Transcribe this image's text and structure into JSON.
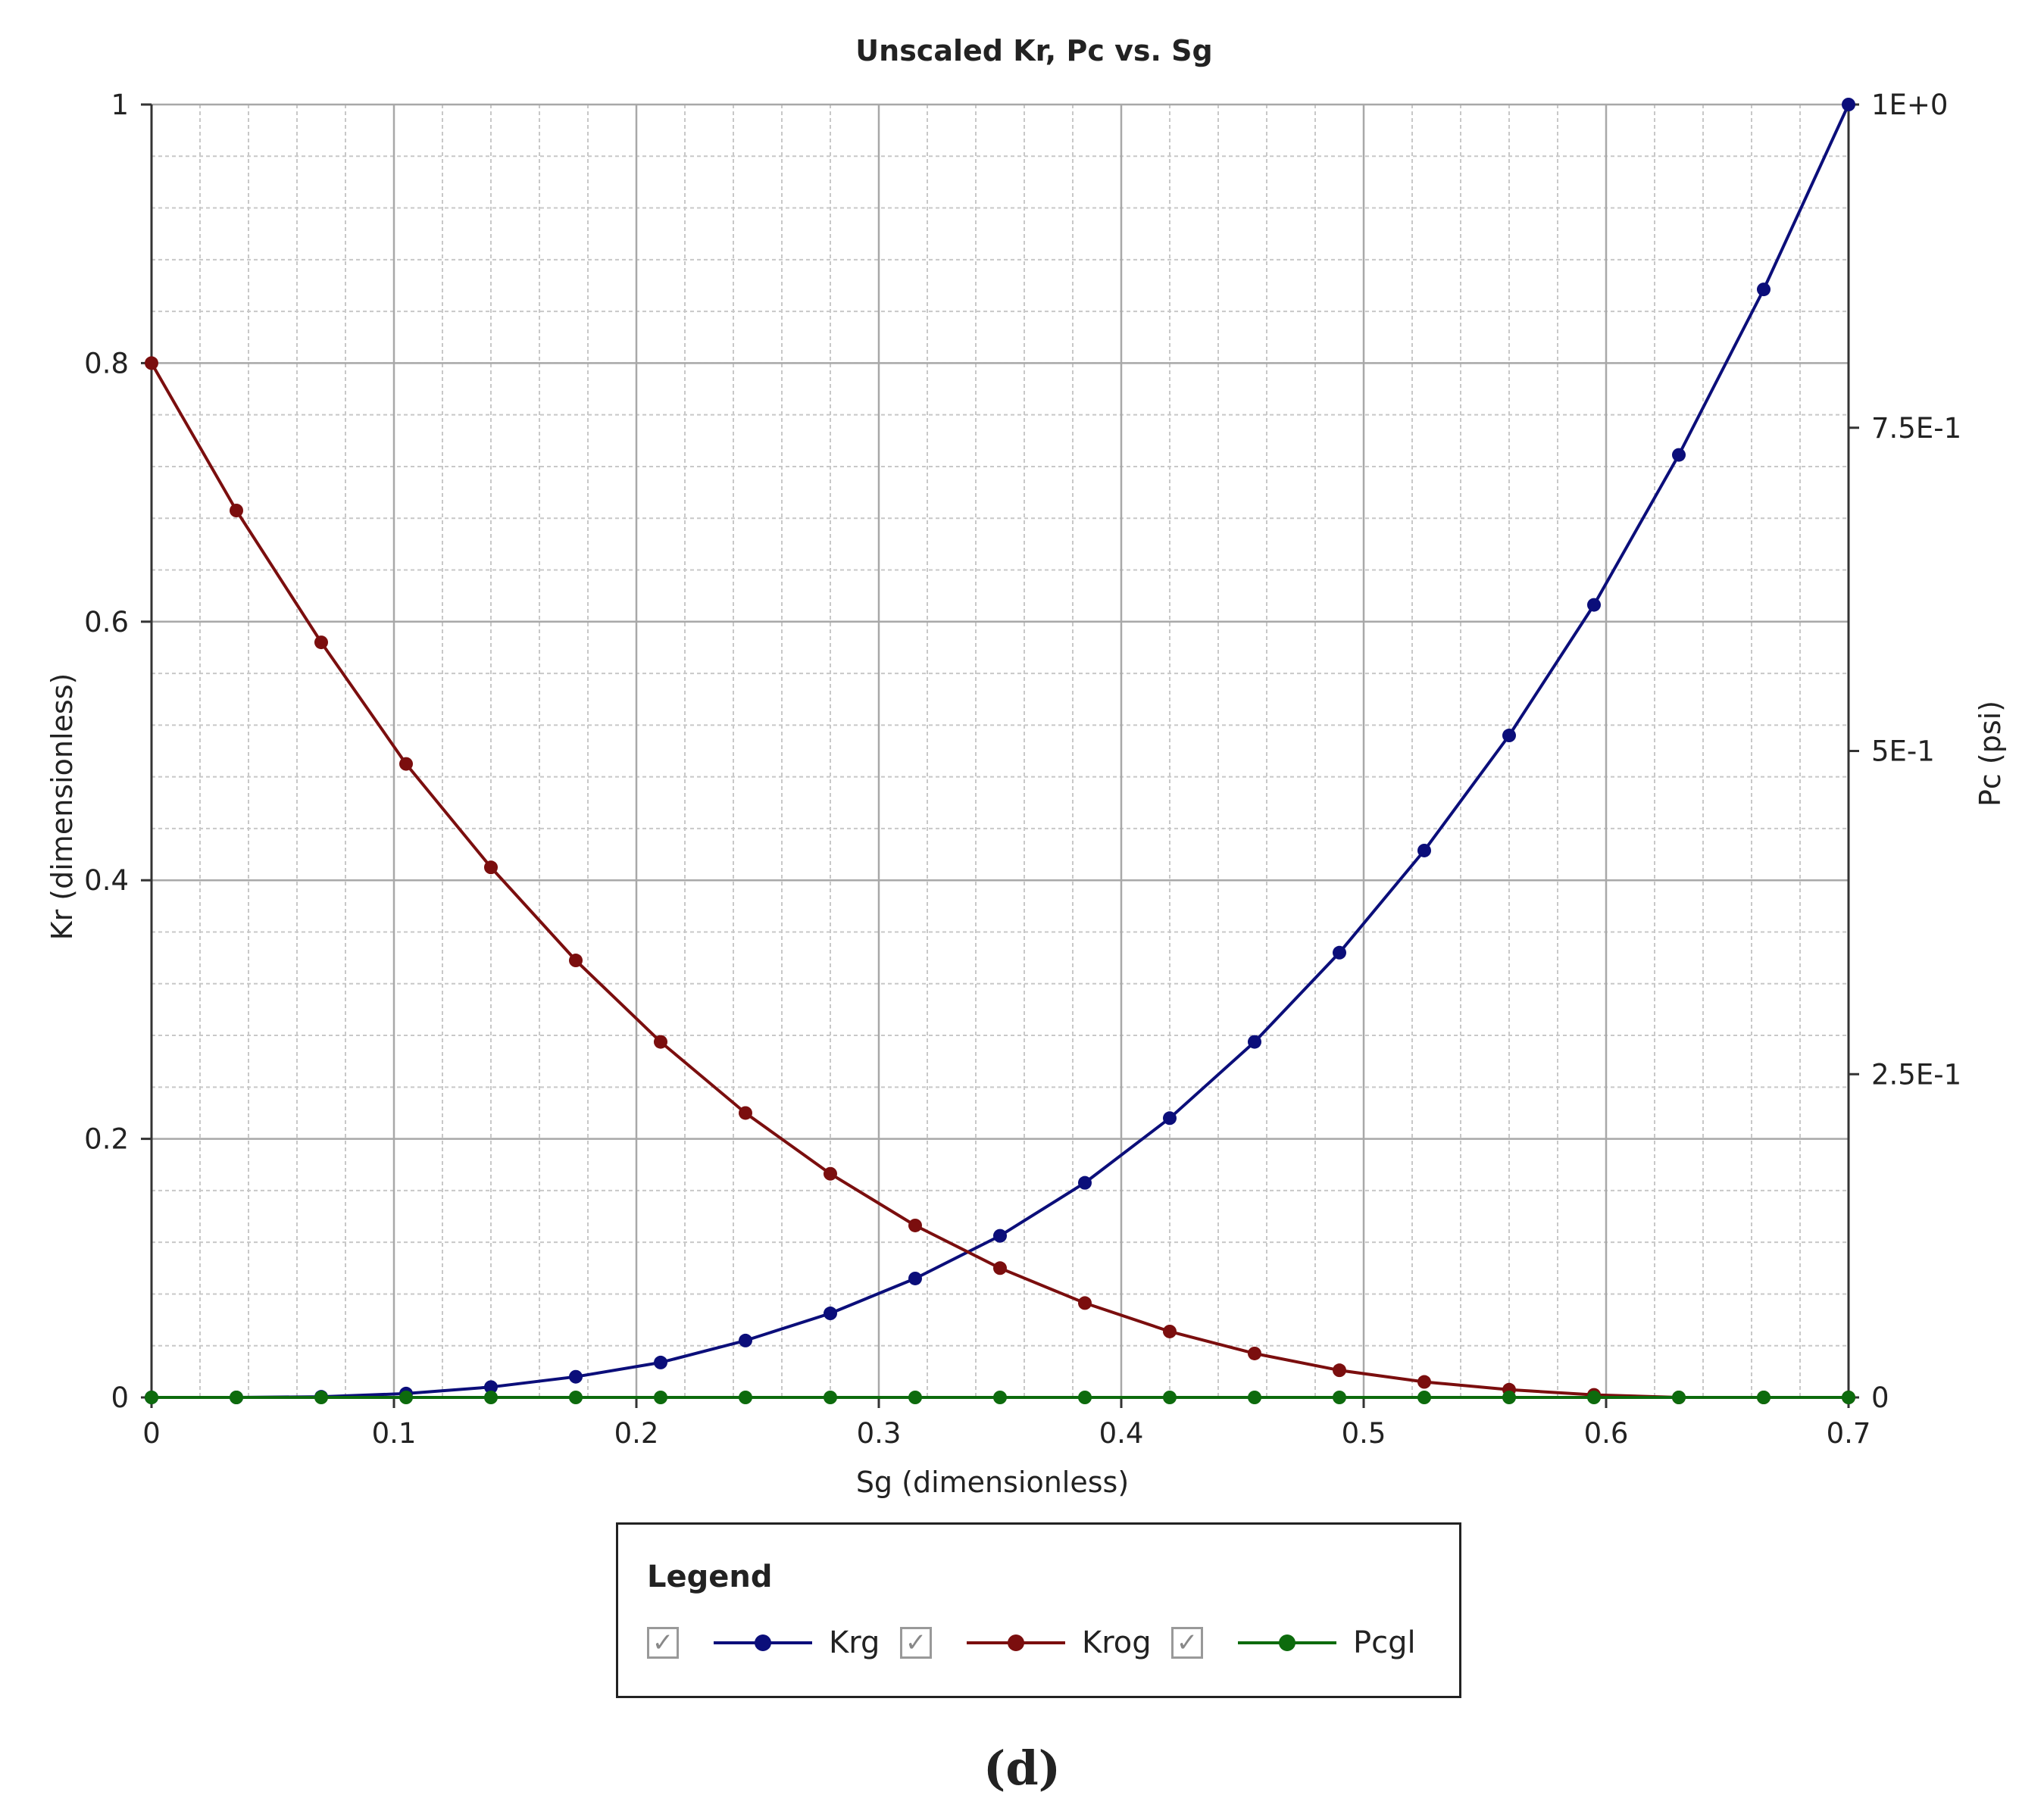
{
  "chart_data": {
    "type": "line",
    "title": "Unscaled Kr, Pc vs. Sg",
    "xlabel": "Sg (dimensionless)",
    "ylabel": "Kr (dimensionless)",
    "y2label": "Pc (psi)",
    "xlim": [
      0,
      0.7
    ],
    "ylim": [
      0,
      1
    ],
    "y2lim": [
      0,
      1
    ],
    "x_ticks": [
      "0",
      "0.1",
      "0.2",
      "0.3",
      "0.4",
      "0.5",
      "0.6",
      "0.7"
    ],
    "y_ticks": [
      "0",
      "0.2",
      "0.4",
      "0.6",
      "0.8",
      "1"
    ],
    "y2_ticks": [
      "0",
      "2.5E-1",
      "5E-1",
      "7.5E-1",
      "1E+0"
    ],
    "grid": true,
    "legend_position": "bottom",
    "x": [
      0,
      0.035,
      0.07,
      0.105,
      0.14,
      0.175,
      0.21,
      0.245,
      0.28,
      0.315,
      0.35,
      0.385,
      0.42,
      0.455,
      0.49,
      0.525,
      0.56,
      0.595,
      0.63,
      0.665,
      0.7
    ],
    "series": [
      {
        "name": "Krg",
        "color": "#0b0e7a",
        "axis": "left",
        "values": [
          0,
          0,
          0.0005,
          0.003,
          0.008,
          0.016,
          0.027,
          0.044,
          0.065,
          0.092,
          0.125,
          0.166,
          0.216,
          0.275,
          0.344,
          0.423,
          0.512,
          0.613,
          0.729,
          0.857,
          1.0
        ]
      },
      {
        "name": "Krog",
        "color": "#7b0e0e",
        "axis": "left",
        "values": [
          0.8,
          0.686,
          0.584,
          0.49,
          0.41,
          0.338,
          0.275,
          0.22,
          0.173,
          0.133,
          0.1,
          0.073,
          0.051,
          0.034,
          0.021,
          0.012,
          0.006,
          0.002,
          0,
          0,
          0
        ]
      },
      {
        "name": "Pcgl",
        "color": "#0d6b0d",
        "axis": "right",
        "values": [
          0,
          0,
          0,
          0,
          0,
          0,
          0,
          0,
          0,
          0,
          0,
          0,
          0,
          0,
          0,
          0,
          0,
          0,
          0,
          0,
          0
        ]
      }
    ]
  },
  "legend": {
    "title": "Legend",
    "check_glyph": "✓",
    "items": [
      {
        "label": "Krg",
        "color": "#0b0e7a",
        "checked": true
      },
      {
        "label": "Krog",
        "color": "#7b0e0e",
        "checked": true
      },
      {
        "label": "Pcgl",
        "color": "#0d6b0d",
        "checked": true
      }
    ]
  },
  "caption": "(d)"
}
